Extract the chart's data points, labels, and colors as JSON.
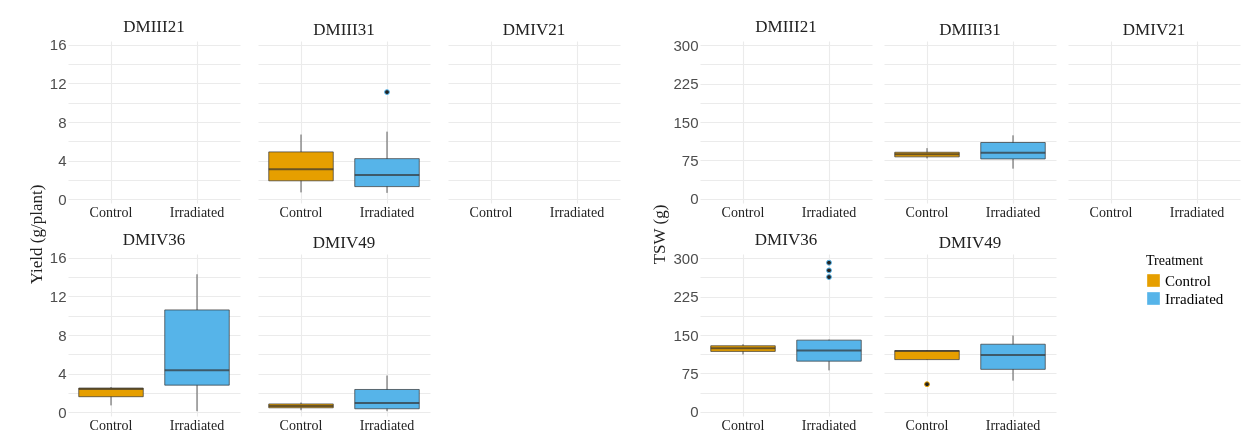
{
  "chart_data": [
    {
      "type": "box",
      "title": "DMIII21",
      "ylabel": "Yield (g/plant)",
      "categories": [
        "Control",
        "Irradiated"
      ],
      "series": [
        {
          "color": "#e69f00",
          "boxes": [
            null,
            null
          ]
        },
        {
          "color": "#56b4e9",
          "boxes": [
            null,
            null
          ]
        }
      ],
      "ylim": [
        -0.4,
        16.4
      ],
      "yticks": [
        0,
        {
          "value": 2,
          "label": null
        },
        4,
        {
          "value": 6,
          "label": null
        },
        8,
        {
          "value": 10,
          "label": null
        },
        12,
        {
          "value": 14,
          "label": null
        },
        16
      ],
      "grid": true
    },
    {
      "type": "box",
      "title": "DMIII31",
      "categories": [
        "Control",
        "Irradiated"
      ],
      "series": [
        {
          "color": "#e69f00",
          "boxes": [
            {
              "low": 0.7,
              "q1": 1.9,
              "median": 3.1,
              "q3": 4.9,
              "high": 6.7
            },
            null
          ]
        },
        {
          "color": "#56b4e9",
          "boxes": [
            null,
            {
              "low": 0.65,
              "q1": 1.3,
              "median": 2.5,
              "q3": 4.2,
              "high": 7.0,
              "outliers": [
                11.1
              ]
            }
          ]
        }
      ],
      "ylim": [
        -0.4,
        16.4
      ],
      "yticks": [
        0,
        {
          "value": 2,
          "label": null
        },
        4,
        {
          "value": 6,
          "label": null
        },
        8,
        {
          "value": 10,
          "label": null
        },
        12,
        {
          "value": 14,
          "label": null
        },
        16
      ],
      "grid": true,
      "tick_labels": "x"
    },
    {
      "type": "box",
      "title": "DMIV21",
      "categories": [
        "Control",
        "Irradiated"
      ],
      "series": [
        {
          "color": "#e69f00",
          "boxes": [
            null,
            null
          ]
        },
        {
          "color": "#56b4e9",
          "boxes": [
            null,
            null
          ]
        }
      ],
      "ylim": [
        -0.4,
        16.4
      ],
      "yticks": [
        0,
        {
          "value": 2,
          "label": null
        },
        4,
        {
          "value": 6,
          "label": null
        },
        8,
        {
          "value": 10,
          "label": null
        },
        12,
        {
          "value": 14,
          "label": null
        },
        16
      ],
      "grid": true,
      "tick_labels": "x"
    },
    {
      "type": "box",
      "title": "DMIV36",
      "categories": [
        "Control",
        "Irradiated"
      ],
      "series": [
        {
          "color": "#e69f00",
          "boxes": [
            {
              "low": 0.7,
              "q1": 1.6,
              "median": 2.4,
              "q3": 2.5,
              "high": 2.6
            },
            null
          ]
        },
        {
          "color": "#56b4e9",
          "boxes": [
            null,
            {
              "low": 0.1,
              "q1": 2.8,
              "median": 4.35,
              "q3": 10.6,
              "high": 14.3
            }
          ]
        }
      ],
      "ylim": [
        -0.4,
        16.4
      ],
      "yticks": [
        0,
        {
          "value": 2,
          "label": null
        },
        4,
        {
          "value": 6,
          "label": null
        },
        8,
        {
          "value": 10,
          "label": null
        },
        12,
        {
          "value": 14,
          "label": null
        },
        16
      ],
      "grid": true
    },
    {
      "type": "box",
      "title": "DMIV49",
      "categories": [
        "Control",
        "Irradiated"
      ],
      "series": [
        {
          "color": "#e69f00",
          "boxes": [
            {
              "low": 0.2,
              "q1": 0.45,
              "median": 0.65,
              "q3": 0.85,
              "high": 1.0
            },
            null
          ]
        },
        {
          "color": "#56b4e9",
          "boxes": [
            null,
            {
              "low": 0.1,
              "q1": 0.35,
              "median": 0.95,
              "q3": 2.35,
              "high": 3.8
            }
          ]
        }
      ],
      "ylim": [
        -0.4,
        16.4
      ],
      "yticks": [
        0,
        {
          "value": 2,
          "label": null
        },
        4,
        {
          "value": 6,
          "label": null
        },
        8,
        {
          "value": 10,
          "label": null
        },
        12,
        {
          "value": 14,
          "label": null
        },
        16
      ],
      "grid": true,
      "tick_labels": "x"
    },
    {
      "type": "box",
      "title": "DMIII21",
      "ylabel": "TSW (g)",
      "categories": [
        "Control",
        "Irradiated"
      ],
      "series": [
        {
          "color": "#e69f00",
          "boxes": [
            null,
            null
          ]
        },
        {
          "color": "#56b4e9",
          "boxes": [
            null,
            null
          ]
        }
      ],
      "ylim": [
        -8,
        308
      ],
      "yticks": [
        0,
        {
          "value": 37.5,
          "label": null
        },
        75,
        {
          "value": 112.5,
          "label": null
        },
        150,
        {
          "value": 187.5,
          "label": null
        },
        225,
        {
          "value": 262.5,
          "label": null
        },
        300
      ],
      "grid": true
    },
    {
      "type": "box",
      "title": "DMIII31",
      "categories": [
        "Control",
        "Irradiated"
      ],
      "series": [
        {
          "color": "#e69f00",
          "boxes": [
            {
              "low": 79,
              "q1": 82,
              "median": 87,
              "q3": 91,
              "high": 99
            },
            null
          ]
        },
        {
          "color": "#56b4e9",
          "boxes": [
            null,
            {
              "low": 59,
              "q1": 78,
              "median": 90,
              "q3": 110,
              "high": 124
            }
          ]
        }
      ],
      "ylim": [
        -8,
        308
      ],
      "yticks": [
        0,
        {
          "value": 37.5,
          "label": null
        },
        75,
        {
          "value": 112.5,
          "label": null
        },
        150,
        {
          "value": 187.5,
          "label": null
        },
        225,
        {
          "value": 262.5,
          "label": null
        },
        300
      ],
      "grid": true,
      "tick_labels": "x"
    },
    {
      "type": "box",
      "title": "DMIV21",
      "categories": [
        "Control",
        "Irradiated"
      ],
      "series": [
        {
          "color": "#e69f00",
          "boxes": [
            null,
            null
          ]
        },
        {
          "color": "#56b4e9",
          "boxes": [
            null,
            null
          ]
        }
      ],
      "ylim": [
        -8,
        308
      ],
      "yticks": [
        0,
        {
          "value": 37.5,
          "label": null
        },
        75,
        {
          "value": 112.5,
          "label": null
        },
        150,
        {
          "value": 187.5,
          "label": null
        },
        225,
        {
          "value": 262.5,
          "label": null
        },
        300
      ],
      "grid": true,
      "tick_labels": "x"
    },
    {
      "type": "box",
      "title": "DMIV36",
      "categories": [
        "Control",
        "Irradiated"
      ],
      "series": [
        {
          "color": "#e69f00",
          "boxes": [
            {
              "low": 112,
              "q1": 118,
              "median": 124,
              "q3": 129,
              "high": 132
            },
            null
          ]
        },
        {
          "color": "#56b4e9",
          "boxes": [
            null,
            {
              "low": 81,
              "q1": 99,
              "median": 120,
              "q3": 140,
              "high": 141,
              "outliers": [
                263,
                276,
                291
              ]
            }
          ]
        }
      ],
      "ylim": [
        -8,
        308
      ],
      "yticks": [
        0,
        {
          "value": 37.5,
          "label": null
        },
        75,
        {
          "value": 112.5,
          "label": null
        },
        150,
        {
          "value": 187.5,
          "label": null
        },
        225,
        {
          "value": 262.5,
          "label": null
        },
        300
      ],
      "grid": true
    },
    {
      "type": "box",
      "title": "DMIV49",
      "legend_title": "Treatment",
      "legend": "right",
      "categories": [
        "Control",
        "Irradiated"
      ],
      "series": [
        {
          "name": "Control",
          "color": "#e69f00",
          "boxes": [
            {
              "low": 102,
              "q1": 102,
              "median": 119,
              "q3": 119.5,
              "high": 120,
              "outliers": [
                54
              ]
            },
            null
          ]
        },
        {
          "name": "Irradiated",
          "color": "#56b4e9",
          "boxes": [
            null,
            {
              "low": 61,
              "q1": 83,
              "median": 111,
              "q3": 132,
              "high": 149
            }
          ]
        }
      ],
      "ylim": [
        -8,
        308
      ],
      "yticks": [
        0,
        {
          "value": 37.5,
          "label": null
        },
        75,
        {
          "value": 112.5,
          "label": null
        },
        150,
        {
          "value": 187.5,
          "label": null
        },
        225,
        {
          "value": 262.5,
          "label": null
        },
        300
      ],
      "grid": true,
      "tick_labels": "x"
    }
  ]
}
